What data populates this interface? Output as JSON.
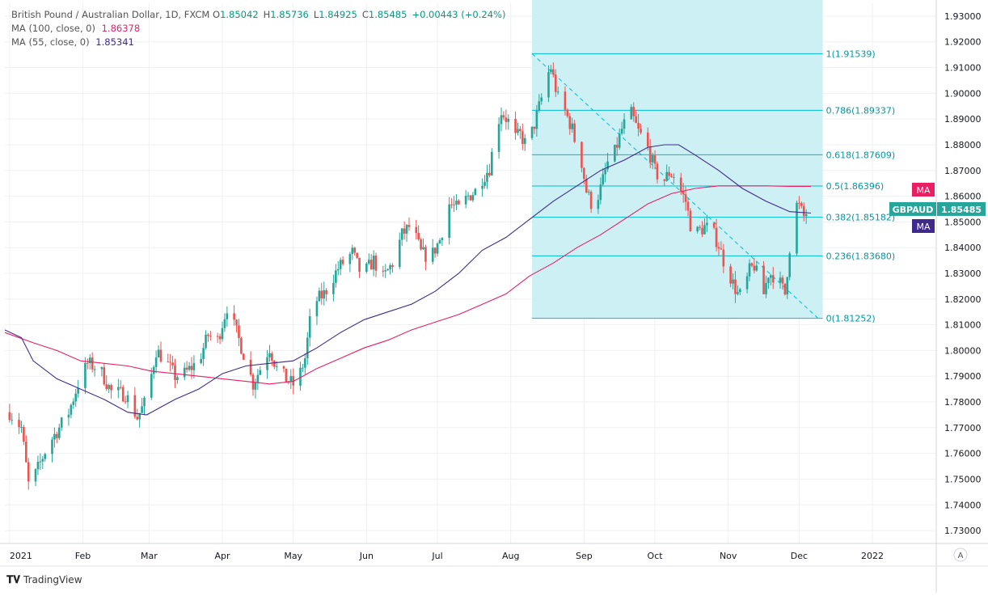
{
  "legend": {
    "symbol_title": "British Pound / Australian Dollar, 1D, FXCM",
    "ohlc": [
      {
        "k": "O",
        "v": "1.85042"
      },
      {
        "k": "H",
        "v": "1.85736"
      },
      {
        "k": "L",
        "v": "1.84925"
      },
      {
        "k": "C",
        "v": "1.85485"
      }
    ],
    "change": "+0.00443 (+0.24%)",
    "ma1_label": "MA (100, close, 0)",
    "ma1_value": "1.86378",
    "ma2_label": "MA (55, close, 0)",
    "ma2_value": "1.85341"
  },
  "colors": {
    "up": "#26a69a",
    "down": "#ef5350",
    "ma100": "#e91e63",
    "ma55": "#3f2a8c",
    "fib_line": "#00bcd4",
    "fib_fill": "#cdf0f5",
    "grid": "#eef0f3",
    "axis_text": "#131722",
    "price_tag": "#26a69a"
  },
  "footer": {
    "brand": "TradingView",
    "auto_button": "A"
  },
  "chart_data": {
    "type": "candlestick",
    "symbol": "GBPAUD",
    "timeframe": "1D",
    "ylim": [
      1.725,
      1.935
    ],
    "y_ticks": [
      "1.73000",
      "1.74000",
      "1.75000",
      "1.76000",
      "1.77000",
      "1.78000",
      "1.79000",
      "1.80000",
      "1.81000",
      "1.82000",
      "1.83000",
      "1.84000",
      "1.85000",
      "1.86000",
      "1.87000",
      "1.88000",
      "1.89000",
      "1.90000",
      "1.91000",
      "1.92000",
      "1.93000"
    ],
    "x_ticks": [
      {
        "label": "2021",
        "day": 0
      },
      {
        "label": "Feb",
        "day": 31
      },
      {
        "label": "Mar",
        "day": 59
      },
      {
        "label": "Apr",
        "day": 90
      },
      {
        "label": "May",
        "day": 120
      },
      {
        "label": "Jun",
        "day": 151
      },
      {
        "label": "Jul",
        "day": 181
      },
      {
        "label": "Aug",
        "day": 212
      },
      {
        "label": "Sep",
        "day": 243
      },
      {
        "label": "Oct",
        "day": 273
      },
      {
        "label": "Nov",
        "day": 304
      },
      {
        "label": "Dec",
        "day": 334
      },
      {
        "label": "2022",
        "day": 365
      }
    ],
    "x_range_days": [
      -2,
      392
    ],
    "last_price": "1.85485",
    "last_symbol": "GBPAUD",
    "ma_tags": [
      {
        "label": "MA",
        "value": 1.86378,
        "color": "#e91e63"
      },
      {
        "label": "MA",
        "value": 1.85341,
        "color": "#3f2a8c"
      }
    ],
    "close_anchors": [
      [
        0,
        1.776
      ],
      [
        5,
        1.77
      ],
      [
        8,
        1.748
      ],
      [
        11,
        1.752
      ],
      [
        16,
        1.763
      ],
      [
        21,
        1.77
      ],
      [
        25,
        1.776
      ],
      [
        29,
        1.787
      ],
      [
        33,
        1.795
      ],
      [
        38,
        1.793
      ],
      [
        43,
        1.784
      ],
      [
        49,
        1.783
      ],
      [
        54,
        1.774
      ],
      [
        58,
        1.781
      ],
      [
        62,
        1.8
      ],
      [
        66,
        1.796
      ],
      [
        70,
        1.79
      ],
      [
        74,
        1.791
      ],
      [
        80,
        1.796
      ],
      [
        84,
        1.806
      ],
      [
        88,
        1.804
      ],
      [
        92,
        1.817
      ],
      [
        96,
        1.807
      ],
      [
        100,
        1.796
      ],
      [
        103,
        1.787
      ],
      [
        106,
        1.793
      ],
      [
        110,
        1.801
      ],
      [
        113,
        1.793
      ],
      [
        117,
        1.789
      ],
      [
        121,
        1.786
      ],
      [
        125,
        1.797
      ],
      [
        128,
        1.818
      ],
      [
        133,
        1.822
      ],
      [
        139,
        1.832
      ],
      [
        145,
        1.838
      ],
      [
        149,
        1.829
      ],
      [
        154,
        1.835
      ],
      [
        158,
        1.828
      ],
      [
        162,
        1.834
      ],
      [
        166,
        1.845
      ],
      [
        170,
        1.849
      ],
      [
        174,
        1.838
      ],
      [
        178,
        1.836
      ],
      [
        182,
        1.843
      ],
      [
        186,
        1.857
      ],
      [
        190,
        1.855
      ],
      [
        194,
        1.86
      ],
      [
        197,
        1.862
      ],
      [
        200,
        1.867
      ],
      [
        203,
        1.871
      ],
      [
        206,
        1.887
      ],
      [
        208,
        1.893
      ],
      [
        211,
        1.889
      ],
      [
        213,
        1.882
      ],
      [
        216,
        1.884
      ],
      [
        219,
        1.879
      ],
      [
        222,
        1.888
      ],
      [
        225,
        1.898
      ],
      [
        227,
        1.906
      ],
      [
        229,
        1.91
      ],
      [
        232,
        1.898
      ],
      [
        235,
        1.893
      ],
      [
        238,
        1.886
      ],
      [
        240,
        1.878
      ],
      [
        242,
        1.873
      ],
      [
        244,
        1.862
      ],
      [
        247,
        1.855
      ],
      [
        250,
        1.863
      ],
      [
        253,
        1.873
      ],
      [
        256,
        1.877
      ],
      [
        259,
        1.886
      ],
      [
        261,
        1.89
      ],
      [
        263,
        1.892
      ],
      [
        266,
        1.885
      ],
      [
        269,
        1.881
      ],
      [
        271,
        1.876
      ],
      [
        273,
        1.87
      ],
      [
        276,
        1.865
      ],
      [
        279,
        1.869
      ],
      [
        281,
        1.868
      ],
      [
        284,
        1.862
      ],
      [
        286,
        1.858
      ],
      [
        288,
        1.849
      ],
      [
        291,
        1.846
      ],
      [
        294,
        1.848
      ],
      [
        297,
        1.847
      ],
      [
        300,
        1.841
      ],
      [
        302,
        1.835
      ],
      [
        304,
        1.831
      ],
      [
        306,
        1.826
      ],
      [
        308,
        1.822
      ],
      [
        310,
        1.821
      ],
      [
        313,
        1.831
      ],
      [
        315,
        1.833
      ],
      [
        317,
        1.827
      ],
      [
        319,
        1.822
      ],
      [
        321,
        1.83
      ],
      [
        324,
        1.829
      ],
      [
        326,
        1.826
      ],
      [
        328,
        1.822
      ],
      [
        330,
        1.84
      ],
      [
        332,
        1.857
      ],
      [
        334,
        1.856
      ],
      [
        336,
        1.852
      ],
      [
        338,
        1.855
      ],
      [
        339,
        1.85485
      ]
    ],
    "series": [
      {
        "name": "MA (100, close, 0)",
        "color": "#e91e63",
        "points": [
          [
            -2,
            1.807
          ],
          [
            10,
            1.803
          ],
          [
            20,
            1.8
          ],
          [
            30,
            1.796
          ],
          [
            40,
            1.795
          ],
          [
            50,
            1.794
          ],
          [
            60,
            1.792
          ],
          [
            70,
            1.791
          ],
          [
            80,
            1.79
          ],
          [
            90,
            1.789
          ],
          [
            100,
            1.788
          ],
          [
            110,
            1.787
          ],
          [
            120,
            1.788
          ],
          [
            130,
            1.793
          ],
          [
            140,
            1.797
          ],
          [
            150,
            1.801
          ],
          [
            160,
            1.804
          ],
          [
            170,
            1.808
          ],
          [
            180,
            1.811
          ],
          [
            190,
            1.814
          ],
          [
            200,
            1.818
          ],
          [
            210,
            1.822
          ],
          [
            220,
            1.829
          ],
          [
            230,
            1.834
          ],
          [
            240,
            1.84
          ],
          [
            250,
            1.845
          ],
          [
            260,
            1.851
          ],
          [
            270,
            1.857
          ],
          [
            280,
            1.861
          ],
          [
            290,
            1.863
          ],
          [
            300,
            1.864
          ],
          [
            310,
            1.864
          ],
          [
            320,
            1.864
          ],
          [
            330,
            1.8638
          ],
          [
            339,
            1.86378
          ]
        ]
      },
      {
        "name": "MA (55, close, 0)",
        "color": "#3f2a8c",
        "points": [
          [
            -2,
            1.808
          ],
          [
            5,
            1.805
          ],
          [
            10,
            1.796
          ],
          [
            20,
            1.789
          ],
          [
            30,
            1.785
          ],
          [
            40,
            1.781
          ],
          [
            50,
            1.776
          ],
          [
            58,
            1.775
          ],
          [
            64,
            1.778
          ],
          [
            70,
            1.781
          ],
          [
            80,
            1.785
          ],
          [
            90,
            1.791
          ],
          [
            100,
            1.794
          ],
          [
            110,
            1.795
          ],
          [
            120,
            1.796
          ],
          [
            130,
            1.801
          ],
          [
            140,
            1.807
          ],
          [
            150,
            1.812
          ],
          [
            160,
            1.815
          ],
          [
            170,
            1.818
          ],
          [
            180,
            1.823
          ],
          [
            190,
            1.83
          ],
          [
            200,
            1.839
          ],
          [
            210,
            1.844
          ],
          [
            220,
            1.851
          ],
          [
            230,
            1.858
          ],
          [
            240,
            1.864
          ],
          [
            250,
            1.87
          ],
          [
            260,
            1.874
          ],
          [
            270,
            1.879
          ],
          [
            277,
            1.88
          ],
          [
            283,
            1.88
          ],
          [
            290,
            1.876
          ],
          [
            300,
            1.87
          ],
          [
            310,
            1.863
          ],
          [
            320,
            1.858
          ],
          [
            330,
            1.854
          ],
          [
            339,
            1.85341
          ]
        ]
      }
    ],
    "fibonacci": {
      "box_start_day": 221,
      "box_end_day": 344,
      "trend_from": {
        "day": 221,
        "price": 1.91539
      },
      "trend_to": {
        "day": 342,
        "price": 1.81252
      },
      "levels": [
        {
          "label": "1(1.91539)",
          "price": 1.91539
        },
        {
          "label": "0.786(1.89337)",
          "price": 1.89337
        },
        {
          "label": "0.618(1.87609)",
          "price": 1.87609
        },
        {
          "label": "0.5(1.86396)",
          "price": 1.86396
        },
        {
          "label": "0.382(1.85182)",
          "price": 1.85182
        },
        {
          "label": "0.236(1.83680)",
          "price": 1.8368
        },
        {
          "label": "0(1.81252)",
          "price": 1.81252
        }
      ]
    }
  }
}
